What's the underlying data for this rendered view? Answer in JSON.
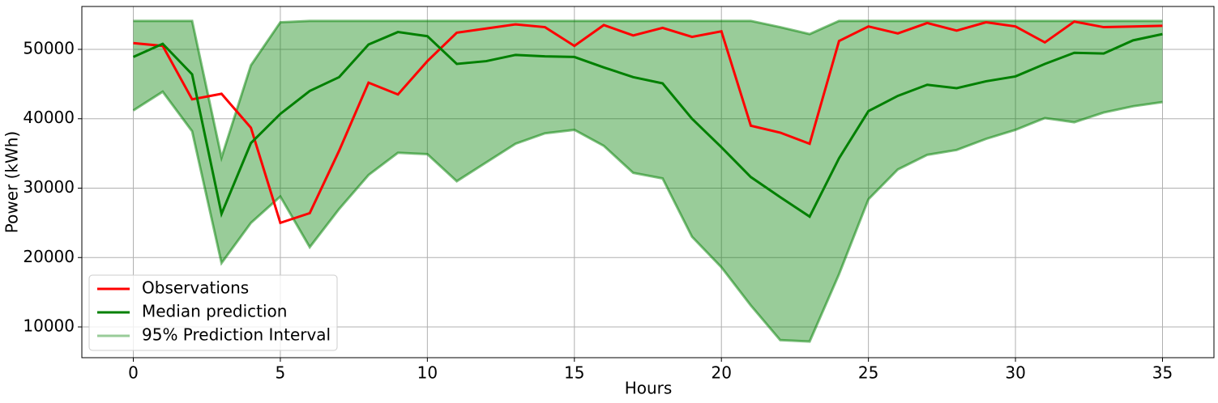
{
  "chart_data": {
    "type": "line",
    "xlabel": "Hours",
    "ylabel": "Power (kWh)",
    "x": [
      0,
      1,
      2,
      3,
      4,
      5,
      6,
      7,
      8,
      9,
      10,
      11,
      12,
      13,
      14,
      15,
      16,
      17,
      18,
      19,
      20,
      21,
      22,
      23,
      24,
      25,
      26,
      27,
      28,
      29,
      30,
      31,
      32,
      33,
      34,
      35
    ],
    "series": [
      {
        "name": "Observations",
        "color": "#ff0000",
        "values": [
          50900,
          50500,
          42800,
          43600,
          38700,
          25000,
          26400,
          35400,
          45200,
          43500,
          48300,
          52400,
          53000,
          53600,
          53200,
          50500,
          53500,
          52000,
          53100,
          51800,
          52600,
          39000,
          38000,
          36400,
          51200,
          53300,
          52300,
          53800,
          52700,
          53900,
          53300,
          51000,
          54000,
          53200,
          53300,
          53400
        ]
      },
      {
        "name": "Median prediction",
        "color": "#008000",
        "values": [
          48900,
          50800,
          46400,
          26300,
          36500,
          40700,
          44000,
          46000,
          50700,
          52500,
          51900,
          47900,
          48300,
          49200,
          49000,
          48900,
          47400,
          46000,
          45100,
          40000,
          35900,
          31600,
          28700,
          25900,
          34300,
          41100,
          43300,
          44900,
          44400,
          45400,
          46100,
          47900,
          49500,
          49400,
          51300,
          52200
        ]
      }
    ],
    "interval": {
      "name": "95% Prediction Interval",
      "color": "#008000",
      "upper": [
        54100,
        54100,
        54100,
        34400,
        47700,
        53900,
        54100,
        54100,
        54100,
        54100,
        54100,
        54100,
        54100,
        54100,
        54100,
        54100,
        54100,
        54100,
        54100,
        54100,
        54100,
        54100,
        53200,
        52200,
        54100,
        54100,
        54100,
        54100,
        54100,
        54100,
        54100,
        54100,
        54100,
        54100,
        54100,
        54100
      ],
      "lower": [
        41200,
        43900,
        38200,
        19200,
        25000,
        28800,
        21500,
        27000,
        31900,
        35100,
        34900,
        31000,
        33700,
        36400,
        37900,
        38400,
        36100,
        32200,
        31400,
        23000,
        18600,
        13100,
        8100,
        7900,
        17600,
        28400,
        32700,
        34800,
        35500,
        37100,
        38400,
        40100,
        39500,
        40900,
        41800,
        42400
      ]
    },
    "xlim": [
      -1.75,
      36.75
    ],
    "ylim": [
      5570,
      56180
    ],
    "xticks": [
      0,
      5,
      10,
      15,
      20,
      25,
      30,
      35
    ],
    "yticks": [
      10000,
      20000,
      30000,
      40000,
      50000
    ],
    "grid": true,
    "legend": "lower left"
  }
}
